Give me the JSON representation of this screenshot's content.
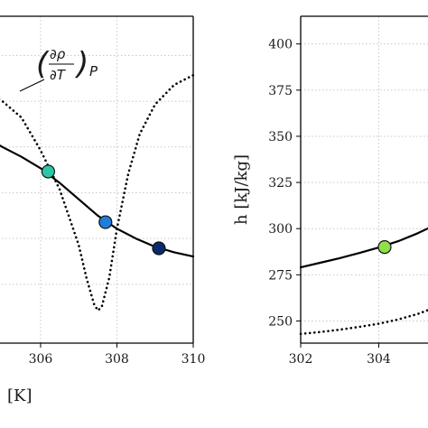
{
  "chart_data": [
    {
      "type": "line",
      "xlabel": "[K]",
      "ylabel": "",
      "xlim": [
        304.7,
        310
      ],
      "x_ticks": [
        306,
        308,
        310
      ],
      "grid": true,
      "annotation": {
        "text": "(∂ρ/∂T)_P",
        "rho": "∂ρ",
        "T": "∂T",
        "sub": "P"
      },
      "series": [
        {
          "style": "solid",
          "color": "#000000",
          "x": [
            304.7,
            305.0,
            305.5,
            306.0,
            306.5,
            307.0,
            307.5,
            308.0,
            308.5,
            309.0,
            309.5,
            310.0
          ],
          "y": [
            0.62,
            0.6,
            0.57,
            0.535,
            0.49,
            0.44,
            0.39,
            0.35,
            0.32,
            0.295,
            0.278,
            0.265
          ]
        },
        {
          "style": "dotted",
          "color": "#000000",
          "x": [
            304.7,
            305.0,
            305.5,
            306.0,
            306.5,
            307.0,
            307.2,
            307.4,
            307.5,
            307.6,
            307.8,
            308.0,
            308.3,
            308.6,
            309.0,
            309.5,
            310.0
          ],
          "y": [
            0.76,
            0.74,
            0.69,
            0.59,
            0.47,
            0.3,
            0.2,
            0.12,
            0.1,
            0.11,
            0.2,
            0.35,
            0.52,
            0.64,
            0.73,
            0.79,
            0.82
          ]
        }
      ],
      "points": [
        {
          "x": 306.2,
          "y": 0.525,
          "color": "#2ec4a8"
        },
        {
          "x": 307.7,
          "y": 0.37,
          "color": "#1e7fd8"
        },
        {
          "x": 309.1,
          "y": 0.29,
          "color": "#0b2a6e"
        }
      ]
    },
    {
      "type": "line",
      "xlabel": "",
      "ylabel": "h [kJ/kg]",
      "xlim": [
        302,
        305.4
      ],
      "ylim": [
        238,
        415
      ],
      "x_ticks": [
        302,
        304
      ],
      "y_ticks": [
        250,
        275,
        300,
        325,
        350,
        375,
        400
      ],
      "grid": true,
      "series": [
        {
          "style": "solid",
          "color": "#000000",
          "x": [
            302.0,
            302.5,
            303.0,
            303.5,
            304.0,
            304.5,
            305.0,
            305.4
          ],
          "y": [
            279.0,
            281.5,
            284.0,
            286.8,
            289.8,
            293.2,
            297.5,
            301.5
          ]
        },
        {
          "style": "dotted",
          "color": "#000000",
          "x": [
            302.0,
            302.5,
            303.0,
            303.5,
            304.0,
            304.5,
            305.0,
            305.4
          ],
          "y": [
            243.0,
            244.0,
            245.3,
            246.8,
            248.5,
            250.8,
            253.8,
            257.0
          ]
        }
      ],
      "points": [
        {
          "x": 304.15,
          "y": 290.0,
          "color": "#8fe04a"
        }
      ]
    }
  ]
}
